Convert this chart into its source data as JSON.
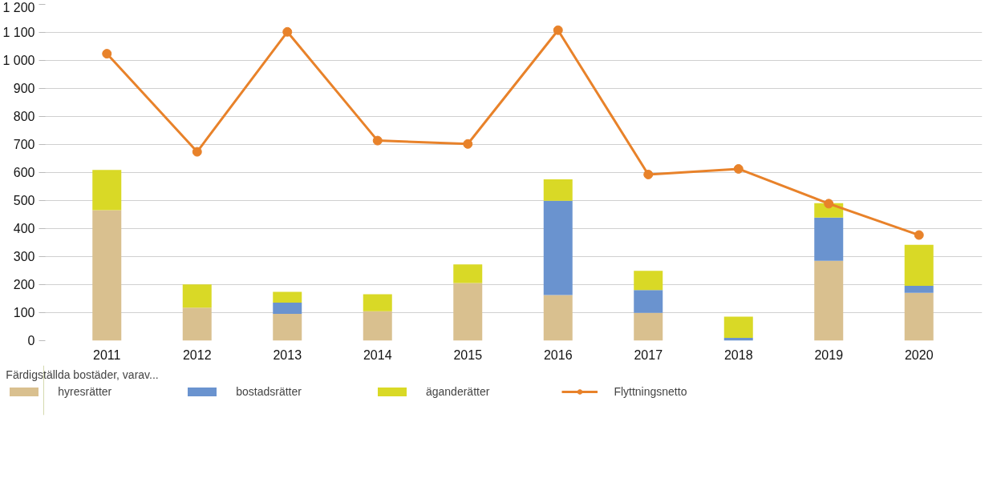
{
  "chart_data": {
    "type": "bar",
    "stacked": true,
    "categories": [
      "2011",
      "2012",
      "2013",
      "2014",
      "2015",
      "2016",
      "2017",
      "2018",
      "2019",
      "2020"
    ],
    "series": [
      {
        "name": "hyresrätter",
        "color": "#d9c08f",
        "values": [
          466,
          118,
          96,
          105,
          206,
          163,
          99,
          0,
          285,
          171
        ]
      },
      {
        "name": "bostadsrätter",
        "color": "#6a93cf",
        "values": [
          0,
          0,
          40,
          0,
          0,
          336,
          82,
          10,
          154,
          25
        ]
      },
      {
        "name": "äganderätter",
        "color": "#d9d926",
        "values": [
          143,
          83,
          38,
          61,
          66,
          77,
          68,
          76,
          52,
          146
        ]
      },
      {
        "name": "Flyttningsnetto",
        "type": "line",
        "color": "#e8822a",
        "marker": "circle",
        "values": [
          1024,
          674,
          1102,
          714,
          702,
          1108,
          593,
          613,
          489,
          377
        ]
      }
    ],
    "legend_title": "Färdigställda bostäder, varav...",
    "legend": "bottom",
    "grid": "y",
    "ylim": [
      0,
      1200
    ],
    "yticks": [
      0,
      100,
      200,
      300,
      400,
      500,
      600,
      700,
      800,
      900,
      {
        "value": 1000,
        "label": "1 000"
      },
      {
        "value": 1100,
        "label": "1 100"
      },
      {
        "value": 1200,
        "label": "1 200"
      }
    ]
  }
}
